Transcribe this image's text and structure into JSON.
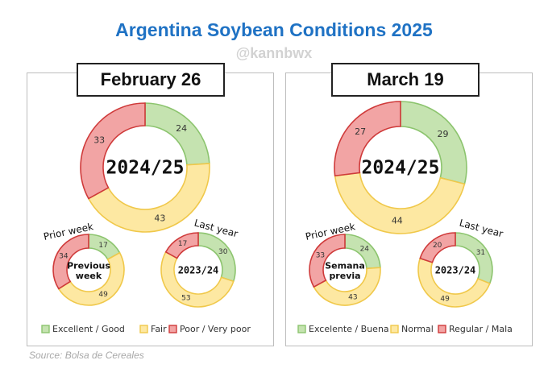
{
  "title": "Argentina Soybean Conditions 2025",
  "watermark": "@kannbwx",
  "source": "Source: Bolsa de Cereales",
  "colors": {
    "good_fill": "#c5e3b0",
    "good_stroke": "#8cc46e",
    "fair_fill": "#fde8a2",
    "fair_stroke": "#f0c84a",
    "poor_fill": "#f2a4a4",
    "poor_stroke": "#cf3a3a"
  },
  "chart_data": [
    {
      "type": "pie",
      "panel": "February 26",
      "legend": [
        "Excellent / Good",
        "Fair",
        "Poor / Very poor"
      ],
      "donuts": [
        {
          "role": "main",
          "center_label": "2024/25",
          "values": [
            24,
            43,
            33
          ]
        },
        {
          "role": "prior",
          "caption": "Prior week",
          "center_label": "Previous week",
          "values": [
            17,
            49,
            34
          ]
        },
        {
          "role": "last",
          "caption": "Last year",
          "center_label": "2023/24",
          "values": [
            30,
            53,
            17
          ]
        }
      ]
    },
    {
      "type": "pie",
      "panel": "March 19",
      "legend": [
        "Excelente / Buena",
        "Normal",
        "Regular / Mala"
      ],
      "donuts": [
        {
          "role": "main",
          "center_label": "2024/25",
          "values": [
            29,
            44,
            27
          ]
        },
        {
          "role": "prior",
          "caption": "Prior week",
          "center_label": "Semana previa",
          "values": [
            24,
            43,
            33
          ]
        },
        {
          "role": "last",
          "caption": "Last year",
          "center_label": "2023/24",
          "values": [
            31,
            49,
            20
          ]
        }
      ]
    }
  ]
}
